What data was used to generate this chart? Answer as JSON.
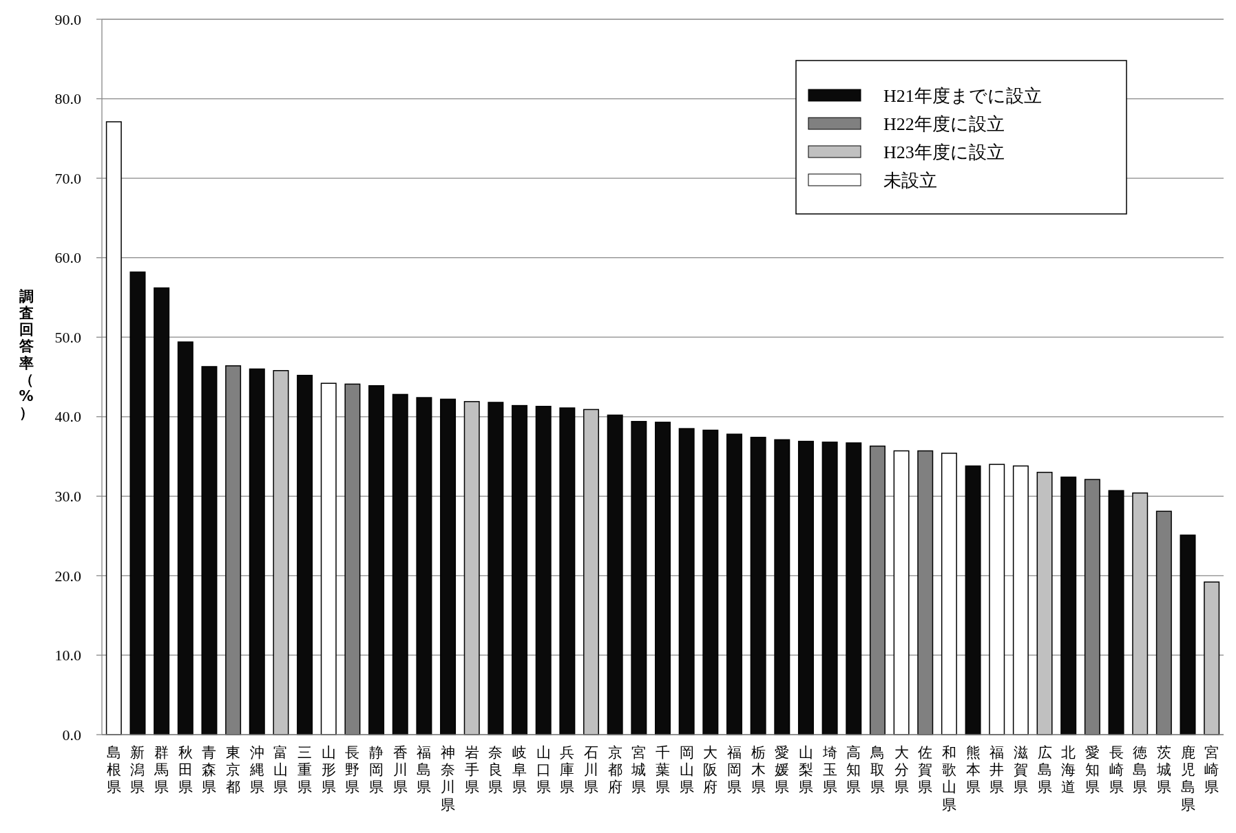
{
  "chart_data": {
    "type": "bar",
    "ylabel": "調査回答率（%）",
    "categories": [
      "島根県",
      "新潟県",
      "群馬県",
      "秋田県",
      "青森県",
      "東京都",
      "沖縄県",
      "富山県",
      "三重県",
      "山形県",
      "長野県",
      "静岡県",
      "香川県",
      "福島県",
      "神奈川県",
      "岩手県",
      "奈良県",
      "岐阜県",
      "山口県",
      "兵庫県",
      "石川県",
      "京都府",
      "宮城県",
      "千葉県",
      "岡山県",
      "大阪府",
      "福岡県",
      "栃木県",
      "愛媛県",
      "山梨県",
      "埼玉県",
      "高知県",
      "鳥取県",
      "大分県",
      "佐賀県",
      "和歌山県",
      "熊本県",
      "福井県",
      "滋賀県",
      "広島県",
      "北海道",
      "愛知県",
      "長崎県",
      "徳島県",
      "茨城県",
      "鹿児島県",
      "宮崎県"
    ],
    "series": [
      {
        "name": "H21年度までに設立",
        "color": "#0a0a0a",
        "values": [
          null,
          58.2,
          56.2,
          49.4,
          46.3,
          null,
          46.0,
          null,
          45.2,
          null,
          null,
          43.9,
          42.8,
          42.4,
          42.2,
          null,
          41.8,
          41.4,
          41.3,
          41.1,
          null,
          40.2,
          39.4,
          39.3,
          38.5,
          38.3,
          37.8,
          37.4,
          37.1,
          36.9,
          36.8,
          36.7,
          null,
          null,
          null,
          null,
          33.8,
          null,
          null,
          null,
          32.4,
          null,
          30.7,
          null,
          null,
          25.1,
          null
        ]
      },
      {
        "name": "H22年度に設立",
        "color": "#808080",
        "values": [
          null,
          null,
          null,
          null,
          null,
          46.4,
          null,
          null,
          null,
          null,
          44.1,
          null,
          null,
          null,
          null,
          null,
          null,
          null,
          null,
          null,
          null,
          null,
          null,
          null,
          null,
          null,
          null,
          null,
          null,
          null,
          null,
          null,
          36.3,
          null,
          35.7,
          null,
          null,
          null,
          null,
          null,
          null,
          32.1,
          null,
          null,
          28.1,
          null,
          null
        ]
      },
      {
        "name": "H23年度に設立",
        "color": "#c0c0c0",
        "values": [
          null,
          null,
          null,
          null,
          null,
          null,
          null,
          45.8,
          null,
          null,
          null,
          null,
          null,
          null,
          null,
          41.9,
          null,
          null,
          null,
          null,
          40.9,
          null,
          null,
          null,
          null,
          null,
          null,
          null,
          null,
          null,
          null,
          null,
          null,
          null,
          null,
          null,
          null,
          null,
          null,
          33.0,
          null,
          null,
          null,
          30.4,
          null,
          null,
          19.2
        ]
      },
      {
        "name": "未設立",
        "color": "#ffffff",
        "values": [
          77.1,
          null,
          null,
          null,
          null,
          null,
          null,
          null,
          null,
          44.2,
          null,
          null,
          null,
          null,
          null,
          null,
          null,
          null,
          null,
          null,
          null,
          null,
          null,
          null,
          null,
          null,
          null,
          null,
          null,
          null,
          null,
          null,
          null,
          35.7,
          null,
          35.4,
          null,
          34.0,
          33.8,
          null,
          null,
          null,
          null,
          null,
          null,
          null,
          null
        ]
      }
    ],
    "ylim": [
      0,
      90
    ],
    "yticks": [
      {
        "value": 0,
        "label": "0.0"
      },
      {
        "value": 10,
        "label": "10.0"
      },
      {
        "value": 20,
        "label": "20.0"
      },
      {
        "value": 30,
        "label": "30.0"
      },
      {
        "value": 40,
        "label": "40.0"
      },
      {
        "value": 50,
        "label": "50.0"
      },
      {
        "value": 60,
        "label": "60.0"
      },
      {
        "value": 70,
        "label": "70.0"
      },
      {
        "value": 80,
        "label": "80.0"
      },
      {
        "value": 90,
        "label": "90.0"
      }
    ],
    "grid": "y",
    "legend": "top right"
  }
}
